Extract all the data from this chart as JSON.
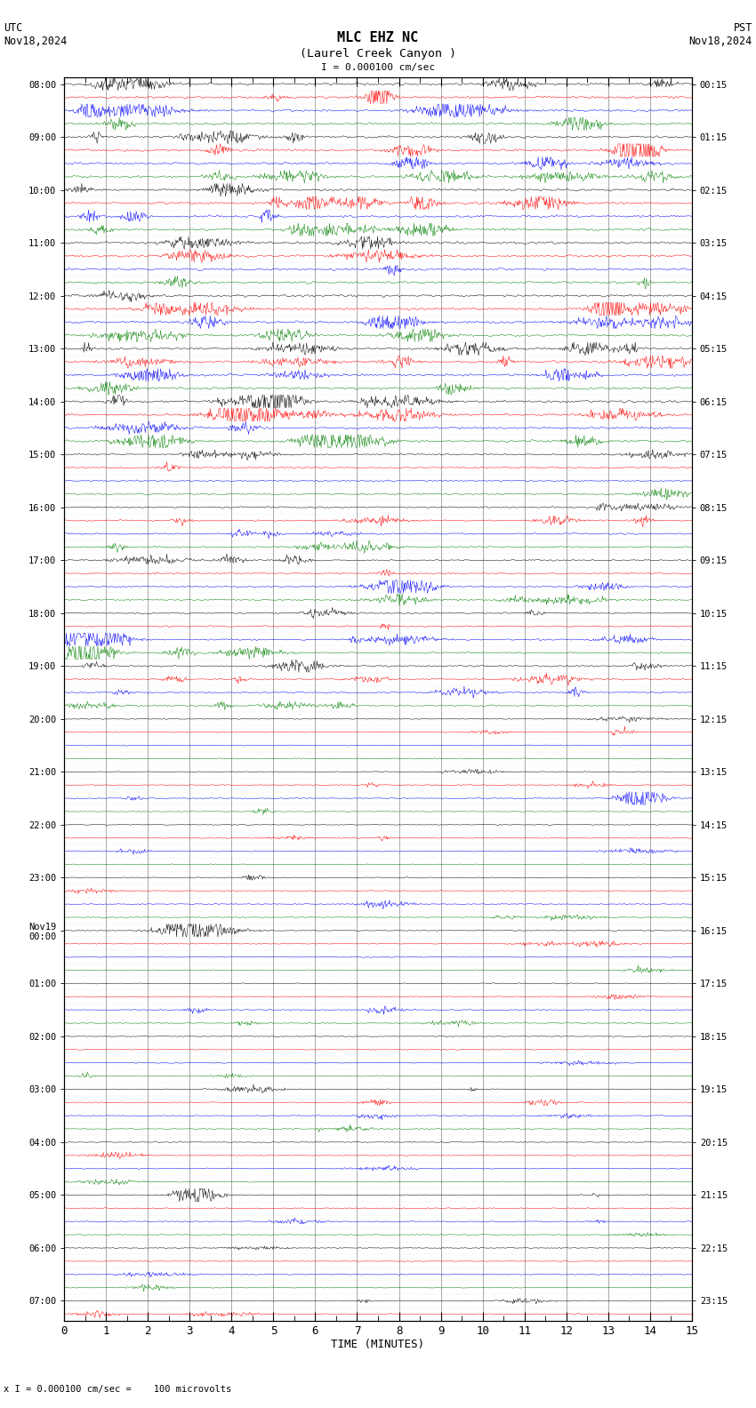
{
  "title_line1": "MLC EHZ NC",
  "title_line2": "(Laurel Creek Canyon )",
  "scale_label": "I = 0.000100 cm/sec",
  "utc_label": "UTC\nNov18,2024",
  "pst_label": "PST\nNov18,2024",
  "bottom_label": "x I = 0.000100 cm/sec =    100 microvolts",
  "xlabel": "TIME (MINUTES)",
  "left_times_utc": [
    "08:00",
    "",
    "",
    "",
    "09:00",
    "",
    "",
    "",
    "10:00",
    "",
    "",
    "",
    "11:00",
    "",
    "",
    "",
    "12:00",
    "",
    "",
    "",
    "13:00",
    "",
    "",
    "",
    "14:00",
    "",
    "",
    "",
    "15:00",
    "",
    "",
    "",
    "16:00",
    "",
    "",
    "",
    "17:00",
    "",
    "",
    "",
    "18:00",
    "",
    "",
    "",
    "19:00",
    "",
    "",
    "",
    "20:00",
    "",
    "",
    "",
    "21:00",
    "",
    "",
    "",
    "22:00",
    "",
    "",
    "",
    "23:00",
    "",
    "",
    "",
    "Nov19\n00:00",
    "",
    "",
    "",
    "01:00",
    "",
    "",
    "",
    "02:00",
    "",
    "",
    "",
    "03:00",
    "",
    "",
    "",
    "04:00",
    "",
    "",
    "",
    "05:00",
    "",
    "",
    "",
    "06:00",
    "",
    "",
    "",
    "07:00",
    "",
    ""
  ],
  "right_times_pst": [
    "00:15",
    "",
    "",
    "",
    "01:15",
    "",
    "",
    "",
    "02:15",
    "",
    "",
    "",
    "03:15",
    "",
    "",
    "",
    "04:15",
    "",
    "",
    "",
    "05:15",
    "",
    "",
    "",
    "06:15",
    "",
    "",
    "",
    "07:15",
    "",
    "",
    "",
    "08:15",
    "",
    "",
    "",
    "09:15",
    "",
    "",
    "",
    "10:15",
    "",
    "",
    "",
    "11:15",
    "",
    "",
    "",
    "12:15",
    "",
    "",
    "",
    "13:15",
    "",
    "",
    "",
    "14:15",
    "",
    "",
    "",
    "15:15",
    "",
    "",
    "",
    "16:15",
    "",
    "",
    "",
    "17:15",
    "",
    "",
    "",
    "18:15",
    "",
    "",
    "",
    "19:15",
    "",
    "",
    "",
    "20:15",
    "",
    "",
    "",
    "21:15",
    "",
    "",
    "",
    "22:15",
    "",
    "",
    "",
    "23:15",
    "",
    ""
  ],
  "n_rows": 94,
  "n_cols_minutes": 15,
  "colors_cycle": [
    "black",
    "red",
    "blue",
    "green"
  ],
  "bg_color": "white",
  "seed": 42
}
